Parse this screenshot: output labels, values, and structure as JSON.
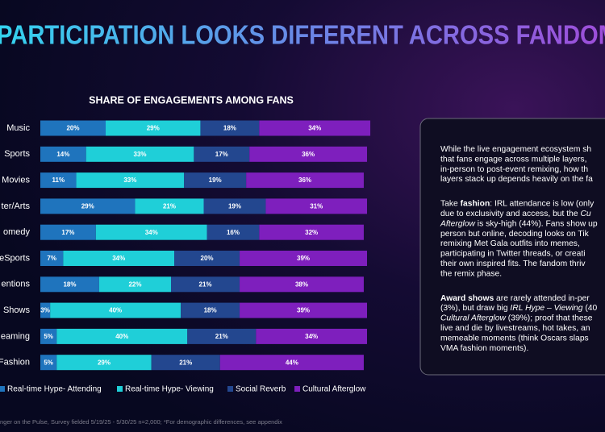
{
  "title": "PARTICIPATION LOOKS DIFFERENT ACROSS FANDOM",
  "footnote": "nger on the Pulse, Survey fielded 5/19/25 - 5/30/25 n=2,000; *For demographic differences, see appendix",
  "chart_data": {
    "type": "stacked-bar-horizontal",
    "title": "SHARE OF ENGAGEMENTS AMONG FANS",
    "categories": [
      "Music",
      "Sports",
      "Movies",
      "ter/Arts",
      "omedy",
      "eSports",
      "entions",
      "Shows",
      "eaming",
      "Fashion"
    ],
    "series": [
      {
        "name": "Real-time Hype- Attending",
        "color": "#1f74bd",
        "values": [
          20,
          14,
          11,
          29,
          17,
          7,
          18,
          3,
          5,
          5
        ],
        "value_labels": [
          "20%",
          "14%",
          "11%",
          "29%",
          "17%",
          "7%",
          "18%",
          "3%",
          "5%",
          "5%"
        ]
      },
      {
        "name": "Real-time Hype- Viewing",
        "color": "#1fcfd8",
        "values": [
          29,
          33,
          33,
          21,
          34,
          34,
          22,
          40,
          40,
          29
        ],
        "value_labels": [
          "29%",
          "33%",
          "33%",
          "21%",
          "34%",
          "34%",
          "22%",
          "40%",
          "40%",
          "29%"
        ]
      },
      {
        "name": "Social Reverb",
        "color": "#23478f",
        "values": [
          18,
          17,
          19,
          19,
          16,
          20,
          21,
          18,
          21,
          21
        ],
        "value_labels": [
          "18%",
          "17%",
          "19%",
          "19%",
          "16%",
          "20%",
          "21%",
          "18%",
          "21%",
          "21%"
        ]
      },
      {
        "name": "Cultural Afterglow",
        "color": "#7e1fbd",
        "values": [
          34,
          36,
          36,
          31,
          32,
          39,
          38,
          39,
          34,
          44
        ],
        "value_labels": [
          "34%",
          "36%",
          "36%",
          "31%",
          "32%",
          "39%",
          "38%",
          "39%",
          "34%",
          "44%"
        ]
      }
    ],
    "legend": "bottom"
  },
  "panel": {
    "paragraphs": [
      [
        [
          {
            "text": "While the live engagement ecosystem sh"
          }
        ],
        [
          {
            "text": "that fans engage across multiple layers, "
          }
        ],
        [
          {
            "text": "in-person to post-event remixing, how th"
          }
        ],
        [
          {
            "text": "layers stack up depends heavily on the fa"
          }
        ]
      ],
      [
        [
          {
            "text": "Take "
          },
          {
            "text": "fashion",
            "style": "bold"
          },
          {
            "text": ": IRL attendance is low (only"
          }
        ],
        [
          {
            "text": "due to exclusivity and access, but the "
          },
          {
            "text": "Cu",
            "style": "italic"
          }
        ],
        [
          {
            "text": "Afterglow",
            "style": "italic"
          },
          {
            "text": " is sky-high (44%). Fans show up"
          }
        ],
        [
          {
            "text": "person but online, decoding looks on Tik"
          }
        ],
        [
          {
            "text": "remixing Met Gala outfits into memes,"
          }
        ],
        [
          {
            "text": "participating in Twitter threads, or creati"
          }
        ],
        [
          {
            "text": "their own inspired fits. The fandom thriv"
          }
        ],
        [
          {
            "text": "the remix phase."
          }
        ]
      ],
      [
        [
          {
            "text": "Award shows",
            "style": "bold"
          },
          {
            "text": " are rarely attended in-per"
          }
        ],
        [
          {
            "text": "(3%), but draw big "
          },
          {
            "text": "IRL Hype – Viewing",
            "style": "italic"
          },
          {
            "text": " (40"
          }
        ],
        [
          {
            "text": "Cultural Afterglow",
            "style": "italic"
          },
          {
            "text": " (39%); proof that these"
          }
        ],
        [
          {
            "text": "live and die by livestreams, hot takes, an"
          }
        ],
        [
          {
            "text": "memeable moments (think Oscars slaps"
          }
        ],
        [
          {
            "text": "VMA fashion moments)."
          }
        ]
      ]
    ]
  }
}
